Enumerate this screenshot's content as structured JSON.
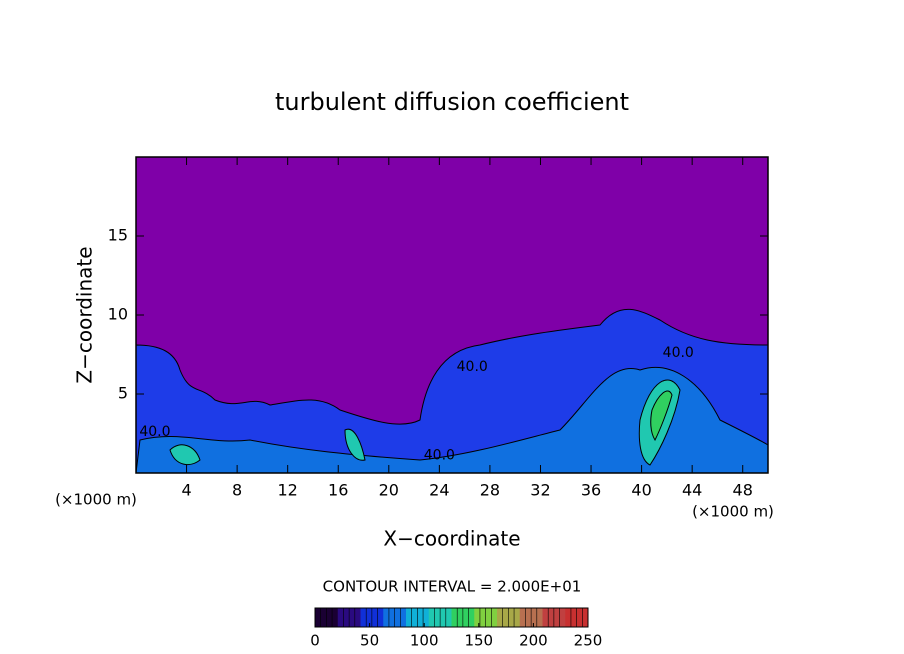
{
  "chart_data": {
    "type": "contour",
    "title": "turbulent diffusion coefficient",
    "x_label": "X−coordinate",
    "y_label": "Z−coordinate",
    "x_unit": "(×1000 m)",
    "y_unit": "(×1000 m)",
    "xlim": [
      0,
      50
    ],
    "xticks": [
      4,
      8,
      12,
      16,
      20,
      24,
      28,
      32,
      36,
      40,
      44,
      48
    ],
    "ylim": [
      0,
      20
    ],
    "yticks": [
      5,
      10,
      15
    ],
    "background_color": "#7f00a8",
    "contour_labels": [
      {
        "value": 40,
        "label": "40.0",
        "x": 26.6,
        "y": 6.7
      },
      {
        "value": 40,
        "label": "40.0",
        "x": 42.9,
        "y": 7.6
      },
      {
        "value": 40,
        "label": "40.0",
        "x": 1.5,
        "y": 2.6
      },
      {
        "value": 40,
        "label": "40.0",
        "x": 24.0,
        "y": 1.1
      }
    ],
    "contour_interval": "CONTOUR INTERVAL = 2.000E+01",
    "colorbar": {
      "clim": [
        0,
        250
      ],
      "cticks": [
        0,
        50,
        100,
        150,
        200,
        250
      ],
      "colors": [
        "#1a0033",
        "#2a0a80",
        "#1030d8",
        "#1070e0",
        "#10b0d8",
        "#20c8b0",
        "#30d060",
        "#80d040",
        "#a8a848",
        "#b87050",
        "#c04040",
        "#c83030"
      ]
    }
  }
}
